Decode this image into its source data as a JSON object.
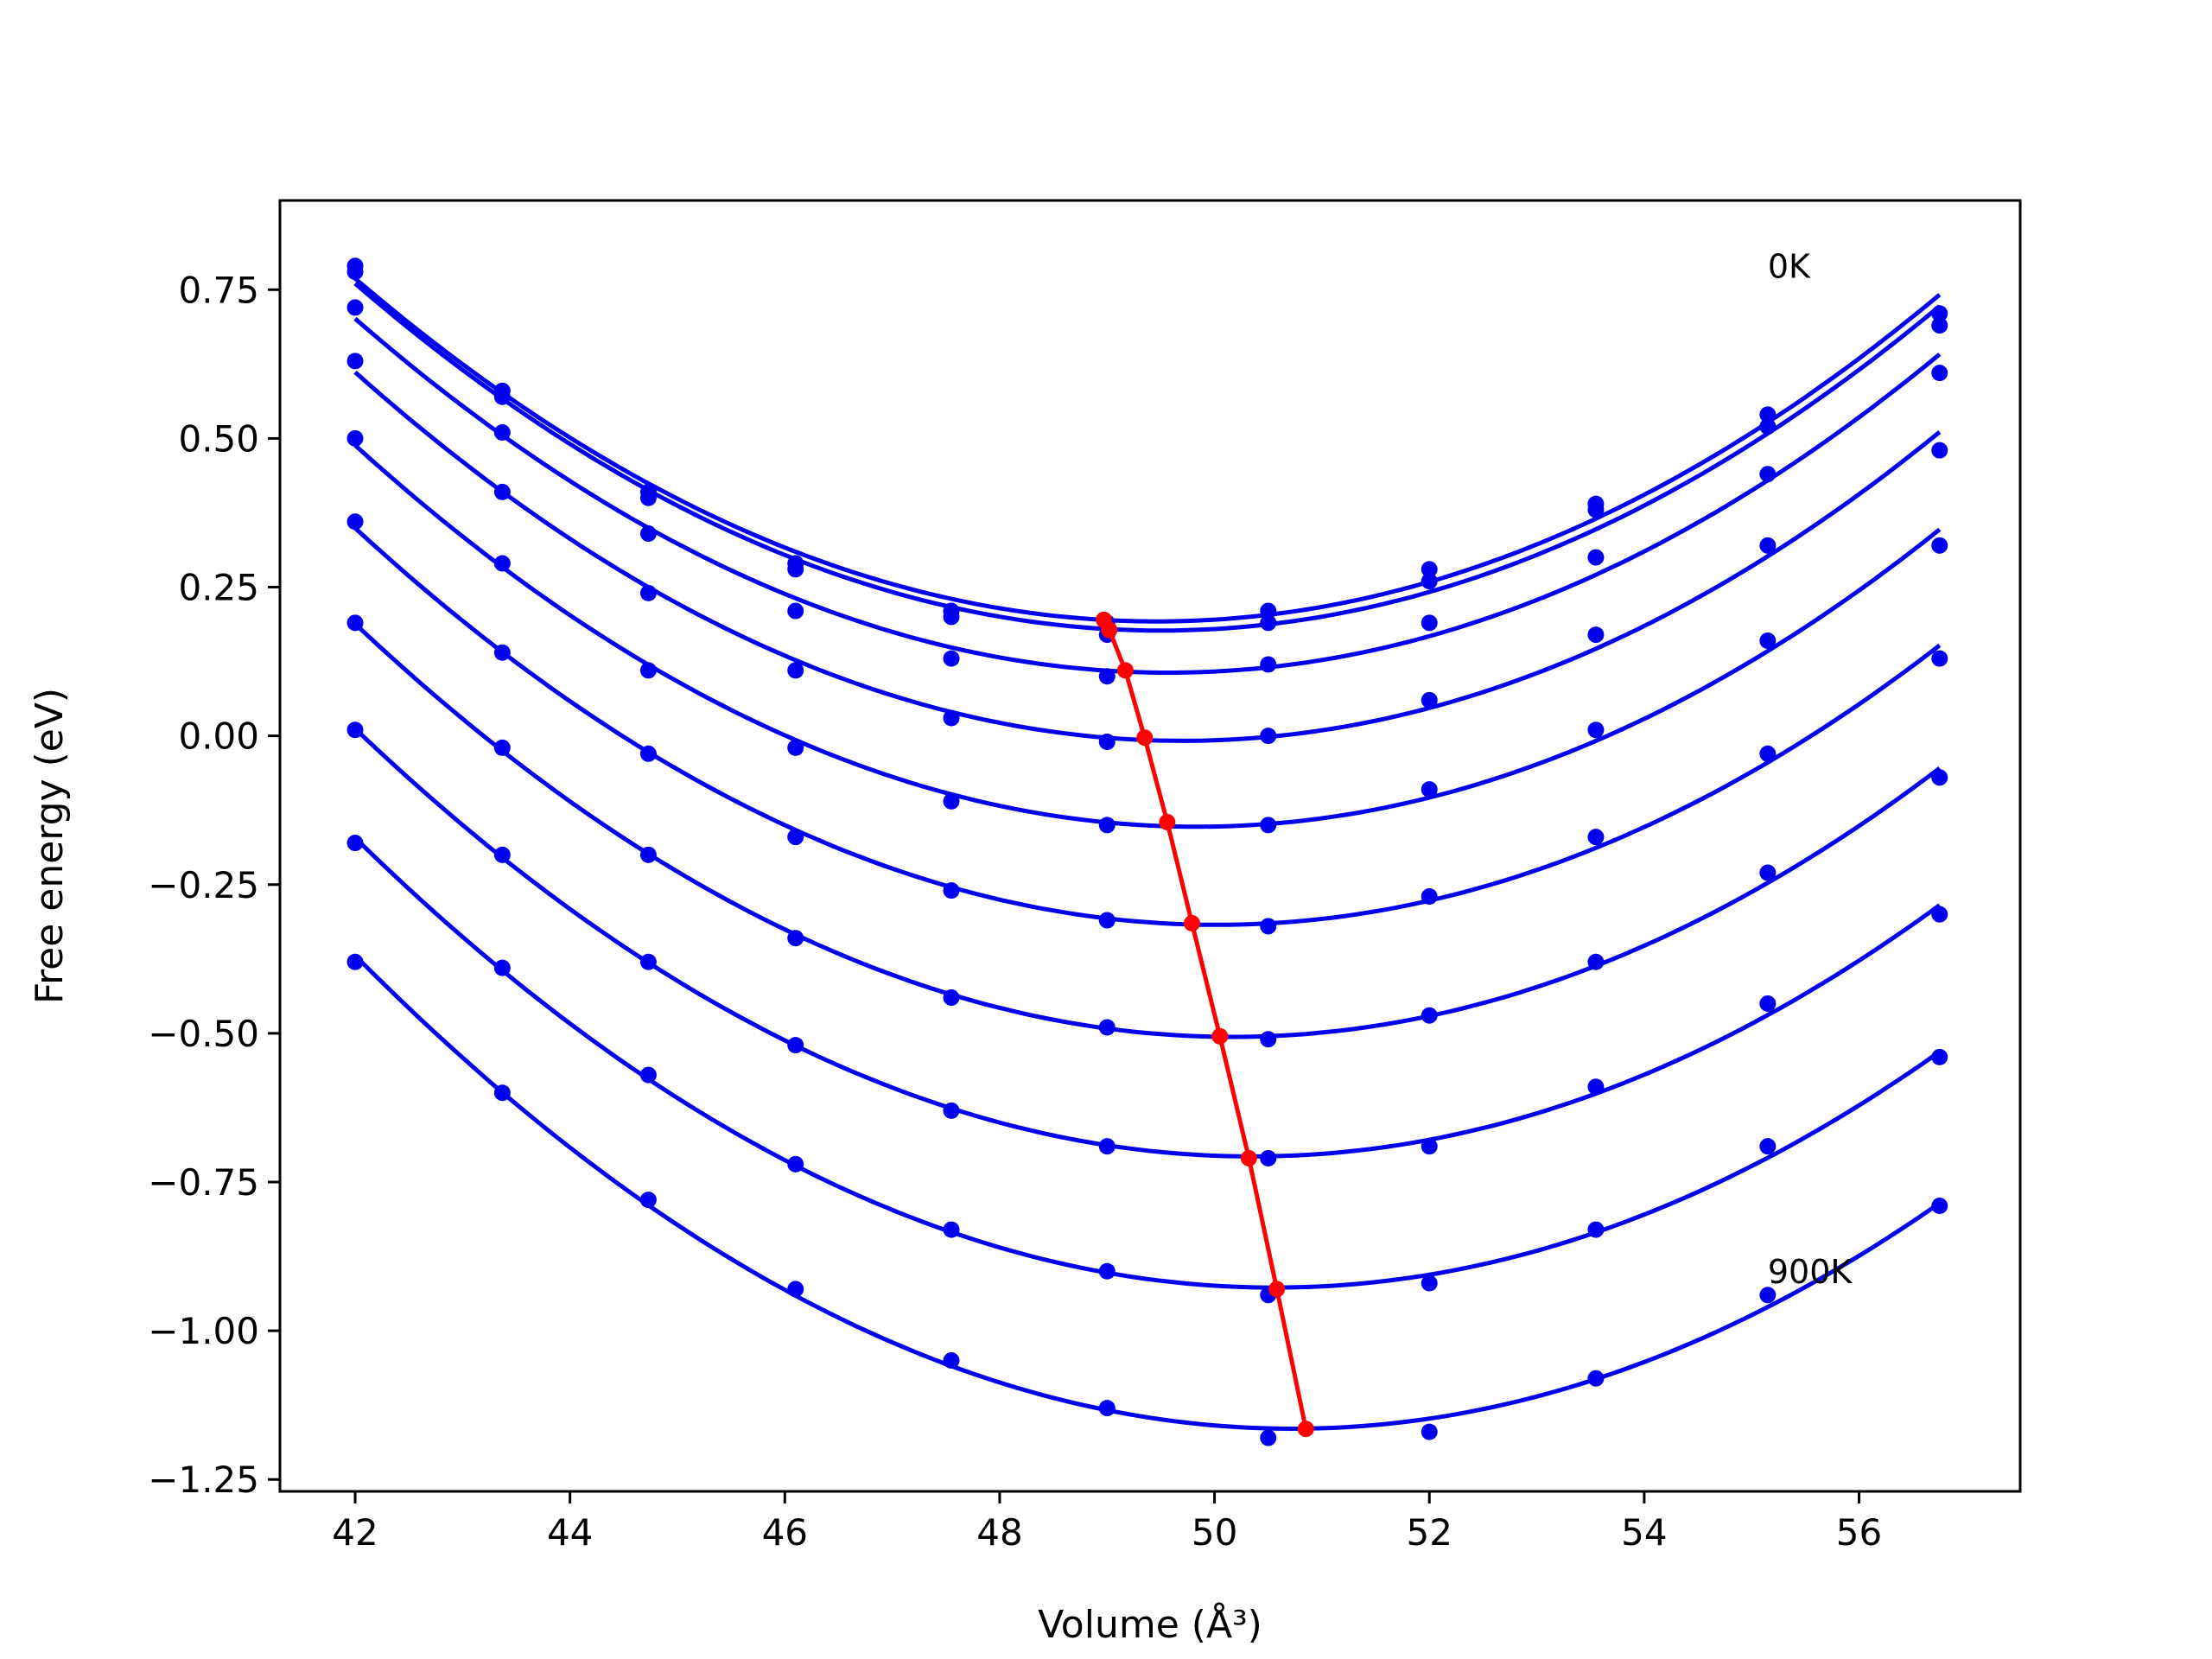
{
  "chart_data": {
    "type": "line",
    "title": "",
    "xlabel": "Volume",
    "xlabel_unit": "(Å³)",
    "ylabel": "Free energy (eV)",
    "xlim": [
      41.3,
      57.5
    ],
    "ylim": [
      -1.27,
      0.9
    ],
    "xticks": [
      42,
      44,
      46,
      48,
      50,
      52,
      54,
      56
    ],
    "yticks": [
      0.75,
      0.5,
      0.25,
      0.0,
      -0.25,
      -0.5,
      -0.75,
      -1.0,
      -1.25
    ],
    "ytick_labels": [
      "0.75",
      "0.50",
      "0.25",
      "0.00",
      "−0.25",
      "−0.50",
      "−0.75",
      "−1.00",
      "−1.25"
    ],
    "grid": false,
    "colors": {
      "series": "#0000ee",
      "equilibrium": "#ff0000"
    },
    "x": [
      42.0,
      43.37,
      44.73,
      46.1,
      47.55,
      49.0,
      50.5,
      52.0,
      53.55,
      55.15,
      56.75
    ],
    "series": [
      {
        "values": [
          0.79,
          0.58,
          0.41,
          0.29,
          0.21,
          0.19,
          0.21,
          0.28,
          0.39,
          0.54,
          0.71
        ],
        "fit_min": [
          48.97,
          0.195
        ]
      },
      {
        "values": [
          0.78,
          0.57,
          0.4,
          0.28,
          0.2,
          0.17,
          0.19,
          0.26,
          0.38,
          0.52,
          0.69
        ],
        "fit_min": [
          49.02,
          0.178
        ]
      },
      {
        "values": [
          0.72,
          0.51,
          0.34,
          0.21,
          0.13,
          0.1,
          0.12,
          0.19,
          0.3,
          0.44,
          0.61
        ],
        "fit_min": [
          49.17,
          0.11
        ]
      },
      {
        "values": [
          0.63,
          0.41,
          0.24,
          0.11,
          0.03,
          -0.01,
          0.0,
          0.06,
          0.17,
          0.32,
          0.48
        ],
        "fit_min": [
          49.35,
          -0.003
        ]
      },
      {
        "values": [
          0.5,
          0.29,
          0.11,
          -0.02,
          -0.11,
          -0.15,
          -0.15,
          -0.09,
          0.01,
          0.16,
          0.32
        ],
        "fit_min": [
          49.56,
          -0.145
        ]
      },
      {
        "values": [
          0.36,
          0.14,
          -0.03,
          -0.17,
          -0.26,
          -0.31,
          -0.32,
          -0.27,
          -0.17,
          -0.03,
          0.13
        ],
        "fit_min": [
          49.79,
          -0.315
        ]
      },
      {
        "values": [
          0.19,
          -0.02,
          -0.2,
          -0.34,
          -0.44,
          -0.49,
          -0.51,
          -0.47,
          -0.38,
          -0.23,
          -0.07
        ],
        "fit_min": [
          50.05,
          -0.505
        ]
      },
      {
        "values": [
          0.01,
          -0.2,
          -0.38,
          -0.52,
          -0.63,
          -0.69,
          -0.71,
          -0.69,
          -0.59,
          -0.45,
          -0.3
        ],
        "fit_min": [
          50.32,
          -0.71
        ]
      },
      {
        "values": [
          -0.18,
          -0.39,
          -0.57,
          -0.72,
          -0.83,
          -0.9,
          -0.94,
          -0.92,
          -0.83,
          -0.69,
          -0.54
        ],
        "fit_min": [
          50.58,
          -0.93
        ]
      },
      {
        "values": [
          -0.38,
          -0.6,
          -0.78,
          -0.93,
          -1.05,
          -1.13,
          -1.18,
          -1.17,
          -1.08,
          -0.94,
          -0.79
        ],
        "fit_min": [
          50.85,
          -1.165
        ]
      }
    ],
    "annotations": [
      {
        "text": "0K",
        "x": 55.15,
        "y": 0.77
      },
      {
        "text": "900K",
        "x": 55.15,
        "y": -0.92
      }
    ]
  }
}
